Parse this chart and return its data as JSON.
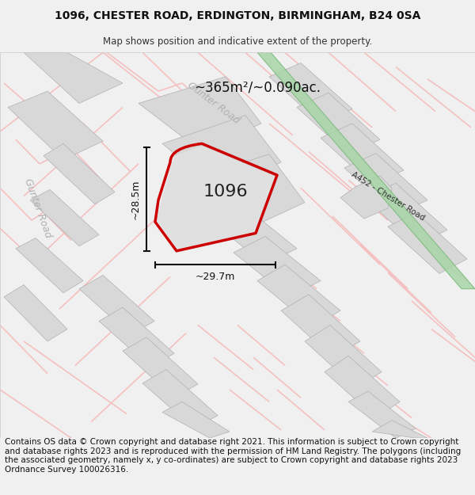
{
  "title_line1": "1096, CHESTER ROAD, ERDINGTON, BIRMINGHAM, B24 0SA",
  "title_line2": "Map shows position and indicative extent of the property.",
  "footer_text": "Contains OS data © Crown copyright and database right 2021. This information is subject to Crown copyright and database rights 2023 and is reproduced with the permission of HM Land Registry. The polygons (including the associated geometry, namely x, y co-ordinates) are subject to Crown copyright and database rights 2023 Ordnance Survey 100026316.",
  "area_label": "~365m²/~0.090ac.",
  "width_label": "~29.7m",
  "height_label": "~28.5m",
  "property_number": "1096",
  "road_label_diag": "Gunter Road",
  "road_label_left": "Gunter Road",
  "road_label_a452": "A452 - Chester Road",
  "bg_color": "#f0f0f0",
  "map_bg": "#ffffff",
  "property_fill": "#e0e0e0",
  "property_stroke": "#cc0000",
  "road_color_pink": "#f5c0c0",
  "road_color_green_fill": "#a8d5a8",
  "road_color_green_edge": "#7ab87a",
  "gray_block_color": "#d8d8d8",
  "gray_block_edge": "#b0b0b0",
  "road_label_color": "#b0b0b0",
  "title_fontsize": 10,
  "footer_fontsize": 7.5
}
